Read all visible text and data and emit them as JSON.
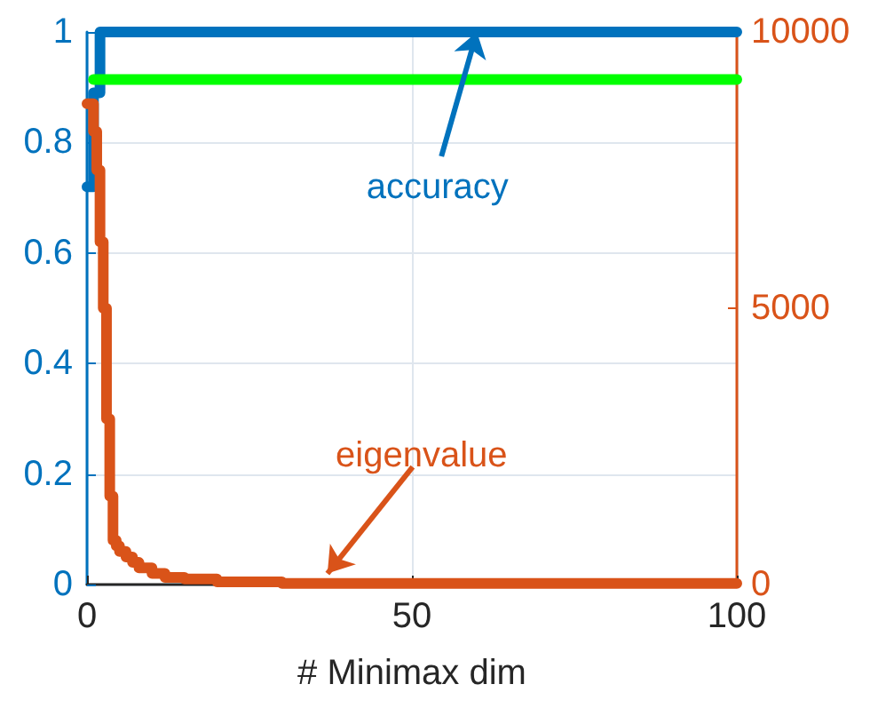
{
  "chart_data": {
    "type": "line",
    "xlabel": "# Minimax dim",
    "xlim": [
      0,
      100
    ],
    "xticks": [
      0,
      50,
      100
    ],
    "ylim": [
      0,
      1
    ],
    "yticks": [
      0,
      0.2,
      0.4,
      0.6,
      0.8,
      1
    ],
    "y2lim": [
      0,
      10000
    ],
    "y2ticks": [
      0,
      5000,
      10000
    ],
    "grid": true,
    "marker": "none",
    "line_style": "solid",
    "series": [
      {
        "color": "#0072bd",
        "type": "step",
        "x": [
          0,
          1,
          2,
          100
        ],
        "values": [
          0.72,
          0.89,
          1,
          1
        ]
      },
      {
        "color": "#00ff00",
        "x": [
          1,
          100
        ],
        "values": [
          0.914,
          0.914
        ]
      },
      {
        "color": "#d95319",
        "type": "step",
        "axis": "y2",
        "x": [
          0,
          1,
          1.5,
          2,
          2.5,
          3,
          3.5,
          4,
          4.5,
          5,
          6,
          7,
          8,
          10,
          12,
          15,
          20,
          30,
          100
        ],
        "values": [
          8700,
          8200,
          7500,
          6200,
          5000,
          3000,
          1600,
          800,
          700,
          600,
          500,
          400,
          300,
          200,
          130,
          100,
          50,
          20,
          20
        ]
      }
    ],
    "annotations": [
      {
        "text": "accuracy",
        "x": 60,
        "y": 1
      },
      {
        "text": "eigenvalue",
        "x": 37,
        "y": 0.02
      }
    ]
  }
}
